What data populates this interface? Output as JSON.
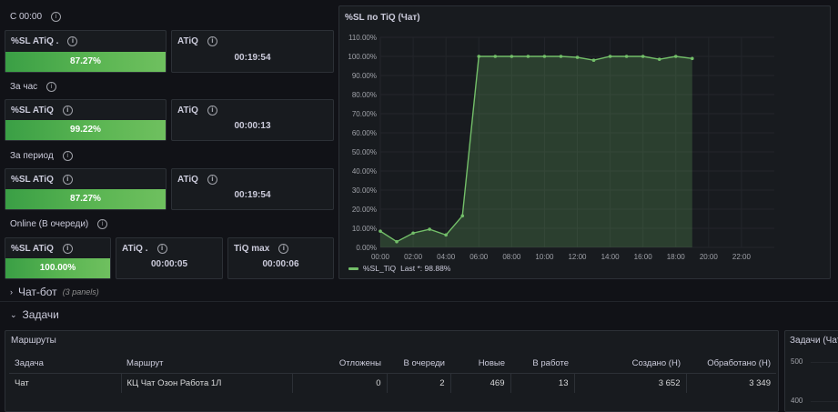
{
  "sections": {
    "c0000": "С 00:00",
    "hour": "За час",
    "period": "За период",
    "online": "Online (В очереди)"
  },
  "stats": {
    "c0000_sl": {
      "title": "%SL ATiQ .",
      "value": "87.27%"
    },
    "c0000_atiq": {
      "title": "ATiQ",
      "value": "00:19:54"
    },
    "hour_sl": {
      "title": "%SL ATiQ",
      "value": "99.22%"
    },
    "hour_atiq": {
      "title": "ATiQ",
      "value": "00:00:13"
    },
    "period_sl": {
      "title": "%SL ATiQ",
      "value": "87.27%"
    },
    "period_atiq": {
      "title": "ATiQ",
      "value": "00:19:54"
    },
    "online_sl": {
      "title": "%SL ATiQ",
      "value": "100.00%"
    },
    "online_atiq": {
      "title": "ATiQ .",
      "value": "00:00:05"
    },
    "online_tiqmax": {
      "title": "TiQ max",
      "value": "00:00:06"
    }
  },
  "colors": {
    "gauge_green": "#5ab552",
    "line_green": "#73bf69",
    "background": "#111217",
    "panel": "#181b1f"
  },
  "chart_panel": {
    "title": "%SL по TiQ (Чат)",
    "legend_label": "%SL_TiQ",
    "legend_last": "Last *: 98.88%"
  },
  "chart_data": {
    "type": "area",
    "title": "%SL по TiQ (Чат)",
    "x_ticks": [
      "00:00",
      "02:00",
      "04:00",
      "06:00",
      "08:00",
      "10:00",
      "12:00",
      "14:00",
      "16:00",
      "18:00",
      "20:00",
      "22:00"
    ],
    "y_ticks": [
      "0.00%",
      "10.00%",
      "20.00%",
      "30.00%",
      "40.00%",
      "50.00%",
      "60.00%",
      "70.00%",
      "80.00%",
      "90.00%",
      "100.00%",
      "110.00%"
    ],
    "x_range_hours": [
      0,
      24
    ],
    "ylim": [
      0,
      110
    ],
    "grid": true,
    "legend_position": "bottom-left",
    "series": [
      {
        "name": "%SL_TiQ",
        "x_hours": [
          0,
          1,
          2,
          3,
          4,
          5,
          6,
          7,
          8,
          9,
          10,
          11,
          12,
          13,
          14,
          15,
          16,
          17,
          18,
          19
        ],
        "values": [
          8.5,
          3,
          7.5,
          9.5,
          6.5,
          16.5,
          100,
          100,
          100,
          100,
          100,
          100,
          99.5,
          98,
          100,
          100,
          100,
          98.5,
          100,
          98.88
        ]
      }
    ]
  },
  "rows": {
    "chatbot": {
      "label": "Чат-бот",
      "note": "(3 panels)"
    },
    "tasks": {
      "label": "Задачи"
    }
  },
  "routes_table": {
    "title": "Маршруты",
    "columns": [
      "Задача",
      "Маршрут",
      "Отложены",
      "В очереди",
      "Новые",
      "В работе",
      "Создано (Н)",
      "Обработано (Н)"
    ],
    "rows": [
      [
        "Чат",
        "КЦ Чат Озон Работа 1Л",
        "0",
        "2",
        "469",
        "13",
        "3 652",
        "3 349"
      ]
    ]
  },
  "side_panel": {
    "title": "Задачи (Чат",
    "y_ticks": [
      "500",
      "400"
    ]
  }
}
